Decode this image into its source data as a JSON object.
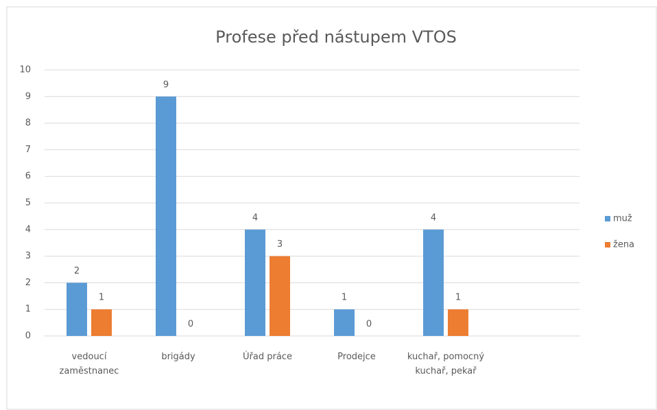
{
  "chart_data": {
    "type": "bar",
    "title": "Profese před nástupem VTOS",
    "categories": [
      "vedoucí zaměstnanec",
      "brigády",
      "Úřad práce",
      "Prodejce",
      "kuchař, pomocný kuchař, pekař",
      null
    ],
    "series": [
      {
        "name": "muž",
        "color": "#5b9bd5",
        "values": [
          2,
          9,
          4,
          1,
          4,
          null
        ]
      },
      {
        "name": "žena",
        "color": "#ed7d31",
        "values": [
          1,
          0,
          3,
          0,
          1,
          null
        ]
      }
    ],
    "ylim": [
      0,
      10
    ],
    "yticks": [
      0,
      1,
      2,
      3,
      4,
      5,
      6,
      7,
      8,
      9,
      10
    ],
    "grid": true,
    "legend": "right"
  }
}
